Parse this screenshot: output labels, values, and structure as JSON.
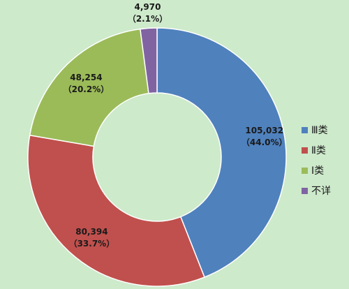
{
  "chart_data": {
    "type": "pie",
    "donut": true,
    "title": "",
    "legend_position": "right",
    "slices": [
      {
        "name": "Ⅲ类",
        "value": 105032,
        "value_label": "105,032",
        "percent_label": "（44.0%）",
        "color": "#4f81bd"
      },
      {
        "name": "Ⅱ类",
        "value": 80394,
        "value_label": "80,394",
        "percent_label": "（33.7%）",
        "color": "#c0504d"
      },
      {
        "name": "Ⅰ类",
        "value": 48254,
        "value_label": "48,254",
        "percent_label": "（20.2%）",
        "color": "#9bbb59"
      },
      {
        "name": "不详",
        "value": 4970,
        "value_label": "4,970",
        "percent_label": "（2.1%）",
        "color": "#8064a2"
      }
    ]
  },
  "legend": {
    "items": [
      {
        "label": "Ⅲ类",
        "color": "#4f81bd"
      },
      {
        "label": "Ⅱ类",
        "color": "#c0504d"
      },
      {
        "label": "Ⅰ类",
        "color": "#9bbb59"
      },
      {
        "label": "不详",
        "color": "#8064a2"
      }
    ]
  },
  "colors": {
    "background": "#cdeacb",
    "slice_border": "#ffffff"
  }
}
